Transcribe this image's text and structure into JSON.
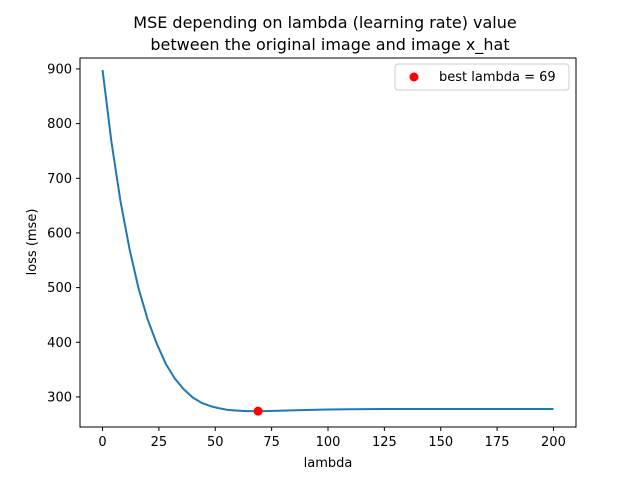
{
  "chart_data": {
    "type": "line",
    "title_lines": [
      "MSE depending on lambda (learning rate) value",
      "between the original image and image x_hat"
    ],
    "xlabel": "lambda",
    "ylabel": "loss (mse)",
    "xlim": [
      -10,
      210
    ],
    "ylim": [
      245,
      920
    ],
    "xticks": [
      0,
      25,
      50,
      75,
      100,
      125,
      150,
      175,
      200
    ],
    "yticks": [
      300,
      400,
      500,
      600,
      700,
      800,
      900
    ],
    "grid": false,
    "legend_placement": "upper right",
    "colors": {
      "line": "#1f77b4",
      "best_point": "#ff0000",
      "axes": "#000000"
    },
    "series": [
      {
        "x": [
          0,
          4,
          8,
          12,
          16,
          20,
          24,
          28,
          32,
          36,
          40,
          44,
          48,
          52,
          56,
          60,
          64,
          68,
          72,
          76,
          80,
          90,
          100,
          110,
          125,
          150,
          175,
          200
        ],
        "y": [
          898,
          765,
          657,
          570,
          498,
          442,
          398,
          361,
          334,
          314,
          299,
          289,
          283,
          279,
          276,
          275,
          274,
          274,
          274,
          274.5,
          275,
          276,
          277,
          277.5,
          278,
          278,
          278,
          278
        ]
      },
      {
        "name": "best lambda = 69",
        "type": "scatter",
        "x": [
          69
        ],
        "y": [
          274
        ]
      }
    ]
  }
}
